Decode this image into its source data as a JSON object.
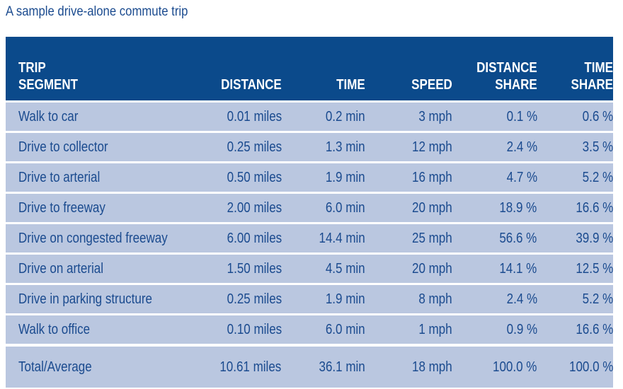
{
  "caption": "A sample drive-alone commute trip",
  "table": {
    "headers": [
      [
        "TRIP",
        "SEGMENT"
      ],
      [
        "DISTANCE"
      ],
      [
        "TIME"
      ],
      [
        "SPEED"
      ],
      [
        "DISTANCE",
        "SHARE"
      ],
      [
        "TIME",
        "SHARE"
      ]
    ],
    "rows": [
      [
        "Walk to car",
        "0.01 miles",
        "0.2 min",
        "3 mph",
        "0.1 %",
        "0.6 %"
      ],
      [
        "Drive to collector",
        "0.25 miles",
        "1.3 min",
        "12 mph",
        "2.4 %",
        "3.5 %"
      ],
      [
        "Drive to arterial",
        "0.50 miles",
        "1.9 min",
        "16 mph",
        "4.7 %",
        "5.2 %"
      ],
      [
        "Drive to freeway",
        "2.00 miles",
        "6.0 min",
        "20 mph",
        "18.9 %",
        "16.6 %"
      ],
      [
        "Drive on congested freeway",
        "6.00 miles",
        "14.4 min",
        "25 mph",
        "56.6 %",
        "39.9 %"
      ],
      [
        "Drive on arterial",
        "1.50 miles",
        "4.5 min",
        "20 mph",
        "14.1 %",
        "12.5 %"
      ],
      [
        "Drive in parking structure",
        "0.25 miles",
        "1.9 min",
        "8 mph",
        "2.4 %",
        "5.2 %"
      ],
      [
        "Walk to office",
        "0.10 miles",
        "6.0 min",
        "1 mph",
        "0.9 %",
        "16.6 %"
      ]
    ],
    "total": [
      "Total/Average",
      "10.61 miles",
      "36.1 min",
      "18 mph",
      "100.0 %",
      "100.0 %"
    ]
  }
}
